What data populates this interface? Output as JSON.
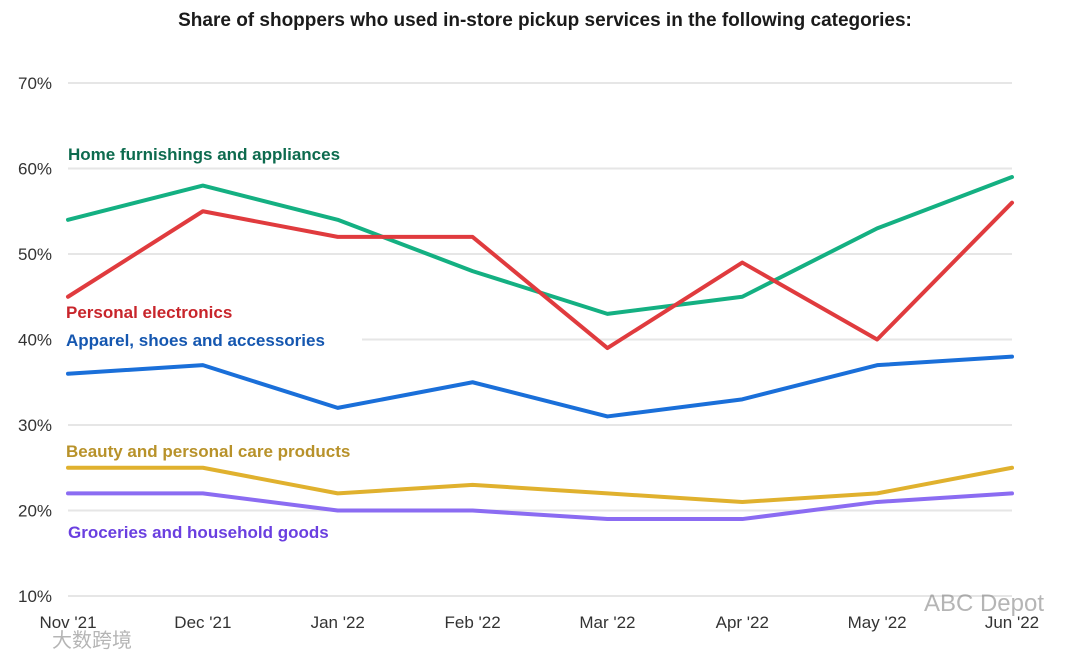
{
  "chart_data": {
    "type": "line",
    "title": "Share of shoppers who used in-store pickup services in the following categories:",
    "xlabel": "",
    "ylabel": "",
    "categories": [
      "Nov '21",
      "Dec '21",
      "Jan '22",
      "Feb '22",
      "Mar '22",
      "Apr '22",
      "May '22",
      "Jun '22"
    ],
    "ylim": [
      10,
      70
    ],
    "yticks": [
      10,
      20,
      30,
      40,
      50,
      60,
      70
    ],
    "ytick_labels": [
      "10%",
      "20%",
      "30%",
      "40%",
      "50%",
      "60%",
      "70%"
    ],
    "grid": true,
    "legend": "inline labels",
    "series": [
      {
        "name": "Home furnishings and appliances",
        "color": "#14b082",
        "label_color": "#0d6b4e",
        "values": [
          54,
          58,
          54,
          48,
          43,
          45,
          53,
          59
        ]
      },
      {
        "name": "Personal electronics",
        "color": "#e03b3e",
        "label_color": "#c8252b",
        "values": [
          45,
          55,
          52,
          52,
          39,
          49,
          40,
          56
        ]
      },
      {
        "name": "Apparel, shoes and accessories",
        "color": "#1a6fd9",
        "label_color": "#1557b0",
        "values": [
          36,
          37,
          32,
          35,
          31,
          33,
          37,
          38
        ]
      },
      {
        "name": "Beauty and personal care products",
        "color": "#e0b12e",
        "label_color": "#b8922a",
        "values": [
          25,
          25,
          22,
          23,
          22,
          21,
          22,
          25
        ]
      },
      {
        "name": "Groceries and household goods",
        "color": "#8b6cf2",
        "label_color": "#6a3fe0",
        "values": [
          22,
          22,
          20,
          20,
          19,
          19,
          21,
          22
        ]
      }
    ]
  },
  "watermarks": {
    "right": "ABC Depot",
    "left": "大数跨境"
  }
}
